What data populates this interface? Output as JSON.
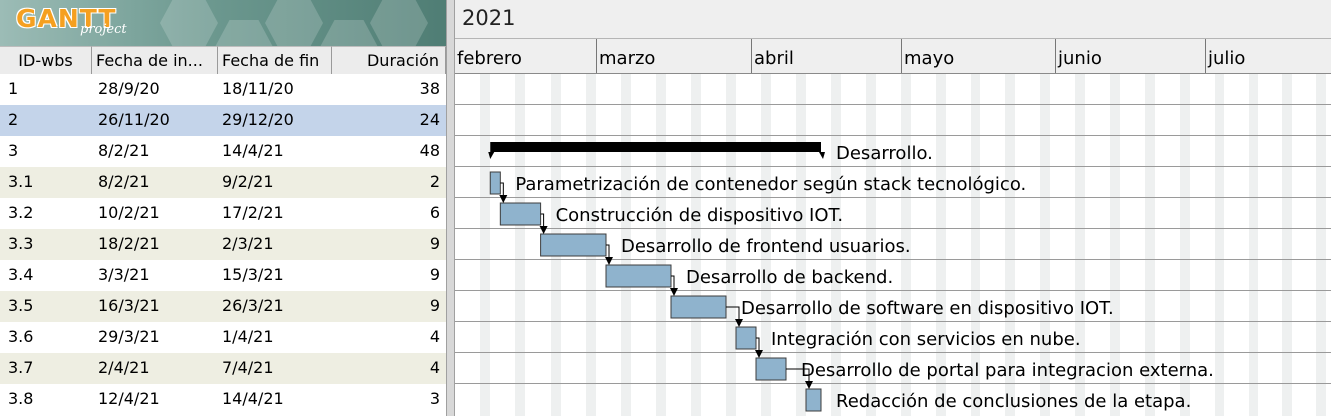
{
  "app": {
    "logo_main": "GANTT",
    "logo_sub": "project"
  },
  "table": {
    "columns": [
      "ID-wbs",
      "Fecha de in...",
      "Fecha de fin",
      "Duración"
    ],
    "rows": [
      {
        "id": "1",
        "start": "28/9/20",
        "end": "18/11/20",
        "duration": "38"
      },
      {
        "id": "2",
        "start": "26/11/20",
        "end": "29/12/20",
        "duration": "24"
      },
      {
        "id": "3",
        "start": "8/2/21",
        "end": "14/4/21",
        "duration": "48"
      },
      {
        "id": "3.1",
        "start": "8/2/21",
        "end": "9/2/21",
        "duration": "2"
      },
      {
        "id": "3.2",
        "start": "10/2/21",
        "end": "17/2/21",
        "duration": "6"
      },
      {
        "id": "3.3",
        "start": "18/2/21",
        "end": "2/3/21",
        "duration": "9"
      },
      {
        "id": "3.4",
        "start": "3/3/21",
        "end": "15/3/21",
        "duration": "9"
      },
      {
        "id": "3.5",
        "start": "16/3/21",
        "end": "26/3/21",
        "duration": "9"
      },
      {
        "id": "3.6",
        "start": "29/3/21",
        "end": "1/4/21",
        "duration": "4"
      },
      {
        "id": "3.7",
        "start": "2/4/21",
        "end": "7/4/21",
        "duration": "4"
      },
      {
        "id": "3.8",
        "start": "12/4/21",
        "end": "14/4/21",
        "duration": "3"
      }
    ],
    "selected_row": 1
  },
  "timeline": {
    "year": "2021",
    "months": [
      "febrero",
      "marzo",
      "abril",
      "mayo",
      "junio",
      "julio"
    ]
  },
  "tasks": [
    {
      "row": 2,
      "name": "Desarrollo.",
      "start": "2021-02-08",
      "end": "2021-04-14",
      "summary": true
    },
    {
      "row": 3,
      "name": "Parametrización de contenedor según stack tecnológico.",
      "start": "2021-02-08",
      "end": "2021-02-09"
    },
    {
      "row": 4,
      "name": "Construcción de dispositivo IOT.",
      "start": "2021-02-10",
      "end": "2021-02-17"
    },
    {
      "row": 5,
      "name": "Desarrollo de frontend usuarios.",
      "start": "2021-02-18",
      "end": "2021-03-02"
    },
    {
      "row": 6,
      "name": "Desarrollo de backend.",
      "start": "2021-03-03",
      "end": "2021-03-15"
    },
    {
      "row": 7,
      "name": "Desarrollo de software en dispositivo IOT.",
      "start": "2021-03-16",
      "end": "2021-03-26"
    },
    {
      "row": 8,
      "name": "Integración con servicios en nube.",
      "start": "2021-03-29",
      "end": "2021-04-01"
    },
    {
      "row": 9,
      "name": "Desarrollo de portal para integracion externa.",
      "start": "2021-04-02",
      "end": "2021-04-07"
    },
    {
      "row": 10,
      "name": "Redacción de conclusiones de la etapa.",
      "start": "2021-04-12",
      "end": "2021-04-14"
    }
  ],
  "colors": {
    "task_bar": "#8fb3cd",
    "summary_bar": "#000000",
    "selected_row": "#c4d4ea",
    "alt_row": "#eeeee2"
  }
}
